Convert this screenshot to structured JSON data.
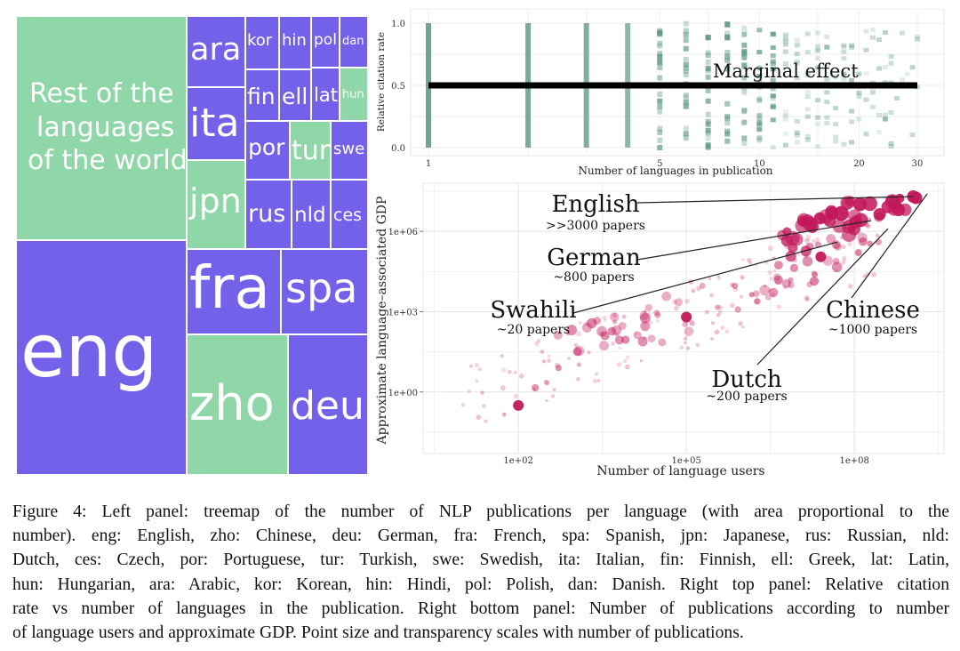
{
  "treemap": {
    "tiles": [
      {
        "label": "Rest of the languages of the world",
        "lines": [
          "Rest of the",
          "languages",
          "of the world"
        ],
        "color": "#8fd6a8"
      },
      {
        "label": "eng",
        "color": "#7461ea"
      },
      {
        "label": "fra",
        "color": "#7461ea"
      },
      {
        "label": "spa",
        "color": "#7461ea"
      },
      {
        "label": "zho",
        "color": "#8fd6a8"
      },
      {
        "label": "deu",
        "color": "#7461ea"
      },
      {
        "label": "ara",
        "color": "#7461ea"
      },
      {
        "label": "kor",
        "color": "#7461ea"
      },
      {
        "label": "hin",
        "color": "#7461ea"
      },
      {
        "label": "pol",
        "color": "#7461ea"
      },
      {
        "label": "dan",
        "color": "#7461ea"
      },
      {
        "label": "ita",
        "color": "#7461ea"
      },
      {
        "label": "fin",
        "color": "#7461ea"
      },
      {
        "label": "ell",
        "color": "#7461ea"
      },
      {
        "label": "lat",
        "color": "#7461ea"
      },
      {
        "label": "hun",
        "color": "#8fd6a8"
      },
      {
        "label": "por",
        "color": "#7461ea"
      },
      {
        "label": "tur",
        "color": "#8fd6a8"
      },
      {
        "label": "swe",
        "color": "#7461ea"
      },
      {
        "label": "jpn",
        "color": "#8fd6a8"
      },
      {
        "label": "rus",
        "color": "#7461ea"
      },
      {
        "label": "nld",
        "color": "#7461ea"
      },
      {
        "label": "ces",
        "color": "#7461ea"
      }
    ]
  },
  "chart_data": [
    {
      "type": "scatter",
      "xlabel": "Number of languages in publication",
      "ylabel": "Relative citation rate",
      "x_ticks": [
        "1",
        "5",
        "10",
        "20",
        "30"
      ],
      "y_ticks": [
        "0.0",
        "0.5",
        "1.0"
      ],
      "ylim": [
        0,
        1
      ],
      "x_scale": "log",
      "annotation": "Marginal effect",
      "marginal_effect_y": 0.5,
      "bar_color": "#5e9a80",
      "grid": true
    },
    {
      "type": "scatter",
      "xlabel": "Number of language users",
      "ylabel": "Approximate language–associated GDP",
      "x_scale": "log",
      "y_scale": "log",
      "x_ticks": [
        "1e+02",
        "1e+05",
        "1e+08"
      ],
      "y_ticks": [
        "1e+00",
        "1e+03",
        "1e+06"
      ],
      "point_color": "#c2185b",
      "grid": true,
      "annotations": [
        {
          "language": "English",
          "papers": ">>3000 papers"
        },
        {
          "language": "German",
          "papers": "~800 papers"
        },
        {
          "language": "Swahili",
          "papers": "~20 papers"
        },
        {
          "language": "Chinese",
          "papers": "~1000 papers"
        },
        {
          "language": "Dutch",
          "papers": "~200 papers"
        }
      ]
    }
  ],
  "caption": {
    "lines": [
      "Figure 4:  Left panel:  treemap of the number of NLP publications per language (with area proportional to the",
      "number). eng: English, zho: Chinese, deu: German, fra: French, spa: Spanish, jpn: Japanese, rus: Russian, nld:",
      "Dutch, ces: Czech, por: Portuguese, tur: Turkish, swe: Swedish, ita: Italian, fin: Finnish, ell: Greek, lat: Latin,",
      "hun: Hungarian, ara: Arabic, kor: Korean, hin: Hindi, pol: Polish, dan: Danish. Right top panel: Relative citation",
      "rate vs number of languages in the publication. Right bottom panel: Number of publications according to number",
      "of language users and approximate GDP. Point size and transparency scales with number of publications."
    ]
  }
}
